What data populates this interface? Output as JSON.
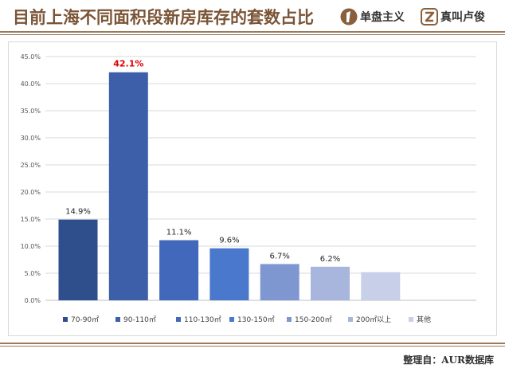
{
  "header": {
    "title": "目前上海不同面积段新房库存的套数占比",
    "brand1": "单盘主义",
    "brand2": "真叫卢俊"
  },
  "footer": {
    "source": "整理自：AUR数据库"
  },
  "colors": {
    "title": "#7b5436",
    "rule": "#9b7a5c",
    "highlight_label": "#e00000"
  },
  "chart_data": {
    "type": "bar",
    "categories": [
      "70-90㎡",
      "90-110㎡",
      "110-130㎡",
      "130-150㎡",
      "150-200㎡",
      "200㎡以上",
      "其他"
    ],
    "values": [
      14.9,
      42.1,
      11.1,
      9.6,
      6.7,
      6.2,
      5.2
    ],
    "data_labels": [
      "14.9%",
      "42.1%",
      "11.1%",
      "9.6%",
      "6.7%",
      "6.2%",
      ""
    ],
    "colors": [
      "#2f4e8c",
      "#3d5ea8",
      "#4168ba",
      "#4a78cc",
      "#7f97d1",
      "#a8b6de",
      "#c7cfe9"
    ],
    "highlight_index": 1,
    "y_ticks": [
      "0.0%",
      "5.0%",
      "10.0%",
      "15.0%",
      "20.0%",
      "25.0%",
      "30.0%",
      "35.0%",
      "40.0%",
      "45.0%"
    ],
    "ylim": [
      0,
      45
    ],
    "grid": true,
    "legend_position": "bottom",
    "title": "",
    "xlabel": "",
    "ylabel": ""
  }
}
